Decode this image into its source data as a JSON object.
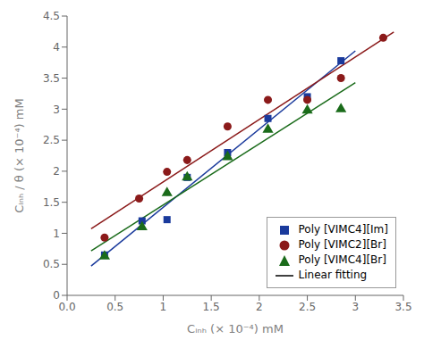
{
  "chart_data": {
    "type": "scatter",
    "title": "",
    "xlabel": "Cᵢₙₕ (× 10⁻⁴) mM",
    "ylabel": "Cᵢₙₕ / θ (× 10⁻⁴) mM",
    "xlim": [
      0.0,
      3.5
    ],
    "ylim": [
      0.0,
      4.5
    ],
    "xticks": [
      {
        "value": 0.0,
        "label": "0.0"
      },
      0.5,
      1,
      1.5,
      2,
      2.5,
      3,
      3.5
    ],
    "yticks": [
      0,
      0.5,
      1,
      1.5,
      2,
      2.5,
      3,
      3.5,
      4,
      4.5
    ],
    "grid": false,
    "legend": "lower right",
    "series": [
      {
        "name": "Poly [VIMC4][Im]",
        "type": "scatter",
        "color": "#1a3a9c",
        "marker": "square",
        "x": [
          0.39,
          0.78,
          1.04,
          1.25,
          1.67,
          2.09,
          2.5,
          2.85
        ],
        "values": [
          0.65,
          1.2,
          1.22,
          1.9,
          2.3,
          2.85,
          3.2,
          3.78
        ]
      },
      {
        "name": "Poly [VIMC2][Br]",
        "type": "scatter",
        "color": "#8b1a1a",
        "marker": "circle",
        "x": [
          0.39,
          0.75,
          1.04,
          1.25,
          1.67,
          2.09,
          2.5,
          2.85,
          3.29
        ],
        "values": [
          0.93,
          1.56,
          1.99,
          2.18,
          2.72,
          3.15,
          3.15,
          3.5,
          4.15
        ]
      },
      {
        "name": "Poly [VIMC4][Br]",
        "type": "scatter",
        "color": "#1a6b1a",
        "marker": "triangle",
        "x": [
          0.39,
          0.78,
          1.04,
          1.25,
          1.67,
          2.09,
          2.5,
          2.85
        ],
        "values": [
          0.63,
          1.1,
          1.65,
          1.9,
          2.23,
          2.67,
          2.98,
          3.0
        ]
      },
      {
        "name": "Linear fitting",
        "type": "line",
        "color": "#000000",
        "lines": [
          {
            "color": "#1a3a9c",
            "x": [
              0.25,
              3.0
            ],
            "values": [
              0.471645,
              3.938892
            ]
          },
          {
            "color": "#8b1a1a",
            "x": [
              0.25,
              3.4
            ],
            "values": [
              1.073221,
              4.24433
            ]
          },
          {
            "color": "#1a6b1a",
            "x": [
              0.25,
              3.0
            ],
            "values": [
              0.718068,
              3.42786
            ]
          }
        ]
      }
    ]
  }
}
